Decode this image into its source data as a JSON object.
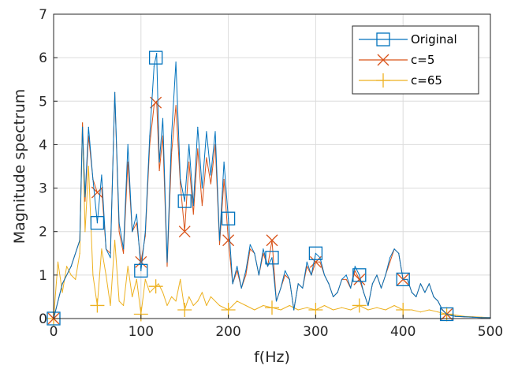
{
  "chart_data": {
    "type": "line",
    "title": "",
    "xlabel": "f(Hz)",
    "ylabel": "Magnitude spectrum",
    "xlim": [
      0,
      500
    ],
    "ylim": [
      0,
      7
    ],
    "xticks": [
      0,
      100,
      200,
      300,
      400,
      500
    ],
    "yticks": [
      0,
      1,
      2,
      3,
      4,
      5,
      6,
      7
    ],
    "grid": true,
    "legend_position": "top-right",
    "series": [
      {
        "name": "Original",
        "color": "#0072BD",
        "marker": "square",
        "marker_x": [
          0,
          50,
          100,
          117,
          150,
          200,
          250,
          300,
          350,
          400,
          450
        ],
        "x": [
          0,
          10,
          20,
          30,
          33,
          36,
          40,
          45,
          50,
          55,
          60,
          65,
          70,
          75,
          80,
          85,
          90,
          95,
          100,
          105,
          110,
          115,
          118,
          121,
          125,
          130,
          135,
          140,
          145,
          150,
          155,
          160,
          165,
          170,
          175,
          180,
          185,
          190,
          195,
          200,
          205,
          210,
          215,
          220,
          225,
          230,
          235,
          240,
          245,
          250,
          255,
          260,
          265,
          270,
          275,
          280,
          285,
          290,
          295,
          300,
          305,
          310,
          315,
          320,
          325,
          330,
          335,
          340,
          345,
          350,
          355,
          360,
          365,
          370,
          375,
          380,
          385,
          390,
          395,
          400,
          405,
          410,
          415,
          420,
          425,
          430,
          435,
          440,
          445,
          450,
          455,
          460,
          470,
          480,
          490,
          500
        ],
        "y": [
          0,
          0.8,
          1.2,
          1.8,
          4.4,
          2.8,
          4.4,
          3.2,
          2.2,
          3.3,
          1.6,
          1.4,
          5.2,
          2.2,
          1.6,
          4.0,
          2.0,
          2.4,
          1.1,
          2.0,
          4.2,
          5.8,
          6.1,
          3.6,
          4.6,
          1.3,
          4.2,
          5.9,
          3.2,
          2.7,
          4.0,
          2.6,
          4.4,
          3.0,
          4.3,
          3.3,
          4.3,
          1.8,
          3.6,
          2.3,
          0.8,
          1.2,
          0.7,
          1.1,
          1.7,
          1.5,
          1.0,
          1.6,
          1.2,
          1.4,
          0.4,
          0.7,
          1.1,
          0.9,
          0.2,
          0.8,
          0.7,
          1.3,
          1.0,
          1.5,
          1.4,
          1.0,
          0.8,
          0.5,
          0.6,
          0.9,
          1.0,
          0.7,
          1.2,
          1.0,
          0.6,
          0.3,
          0.8,
          1.0,
          0.7,
          1.0,
          1.4,
          1.6,
          1.5,
          0.9,
          0.9,
          0.6,
          0.5,
          0.8,
          0.6,
          0.8,
          0.5,
          0.4,
          0.2,
          0.1,
          0.07,
          0.05,
          0.04,
          0.03,
          0.02,
          0.02
        ]
      },
      {
        "name": "c=5",
        "color": "#D95319",
        "marker": "x",
        "marker_x": [
          0,
          50,
          100,
          117,
          150,
          200,
          250,
          300,
          350,
          400,
          450
        ],
        "x": [
          0,
          10,
          20,
          30,
          33,
          36,
          40,
          45,
          50,
          55,
          60,
          65,
          70,
          75,
          80,
          85,
          90,
          95,
          100,
          105,
          110,
          115,
          118,
          121,
          125,
          130,
          135,
          140,
          145,
          150,
          155,
          160,
          165,
          170,
          175,
          180,
          185,
          190,
          195,
          200,
          205,
          210,
          215,
          220,
          225,
          230,
          235,
          240,
          245,
          250,
          255,
          260,
          265,
          270,
          275,
          280,
          285,
          290,
          295,
          300,
          305,
          310,
          315,
          320,
          325,
          330,
          335,
          340,
          345,
          350,
          355,
          360,
          365,
          370,
          375,
          380,
          385,
          390,
          395,
          400,
          405,
          410,
          415,
          420,
          425,
          430,
          435,
          440,
          445,
          450,
          455,
          460,
          470,
          480,
          490,
          500
        ],
        "y": [
          0,
          0.8,
          1.2,
          1.8,
          4.5,
          2.7,
          4.2,
          3.2,
          2.9,
          3.0,
          1.6,
          1.5,
          5.2,
          2.0,
          1.5,
          3.6,
          2.0,
          2.2,
          1.3,
          1.9,
          4.0,
          4.9,
          5.0,
          3.4,
          4.2,
          1.2,
          3.8,
          4.9,
          3.1,
          2.0,
          3.6,
          2.4,
          3.9,
          2.6,
          3.7,
          3.1,
          4.0,
          1.7,
          3.2,
          1.8,
          0.8,
          1.1,
          0.7,
          1.0,
          1.6,
          1.5,
          1.0,
          1.5,
          1.2,
          1.8,
          0.4,
          0.7,
          1.0,
          0.9,
          0.2,
          0.8,
          0.7,
          1.2,
          1.0,
          1.3,
          1.3,
          1.0,
          0.8,
          0.5,
          0.6,
          0.9,
          0.9,
          0.7,
          1.1,
          0.9,
          0.6,
          0.3,
          0.8,
          1.0,
          0.7,
          1.0,
          1.3,
          1.6,
          1.5,
          0.9,
          0.9,
          0.6,
          0.5,
          0.8,
          0.6,
          0.8,
          0.5,
          0.4,
          0.2,
          0.1,
          0.07,
          0.05,
          0.04,
          0.03,
          0.02,
          0.02
        ]
      },
      {
        "name": "c=65",
        "color": "#EDB120",
        "marker": "plus",
        "marker_x": [
          0,
          50,
          100,
          117,
          150,
          200,
          250,
          300,
          350,
          400,
          450
        ],
        "x": [
          0,
          5,
          10,
          15,
          20,
          25,
          30,
          33,
          36,
          40,
          45,
          50,
          55,
          60,
          65,
          70,
          75,
          80,
          85,
          90,
          95,
          100,
          105,
          110,
          115,
          120,
          125,
          130,
          135,
          140,
          145,
          150,
          155,
          160,
          165,
          170,
          175,
          180,
          190,
          200,
          210,
          220,
          230,
          240,
          250,
          260,
          270,
          280,
          290,
          300,
          310,
          320,
          330,
          340,
          350,
          360,
          370,
          380,
          390,
          400,
          410,
          420,
          430,
          440,
          450,
          460,
          470,
          480,
          490,
          500
        ],
        "y": [
          0,
          1.3,
          0.6,
          1.2,
          1.0,
          0.9,
          1.5,
          4.5,
          2.0,
          3.5,
          1.0,
          0.3,
          1.6,
          1.0,
          0.3,
          1.8,
          0.4,
          0.3,
          1.2,
          0.5,
          0.9,
          0.1,
          0.9,
          0.6,
          0.7,
          0.8,
          0.6,
          0.3,
          0.5,
          0.4,
          0.9,
          0.2,
          0.5,
          0.3,
          0.4,
          0.6,
          0.3,
          0.5,
          0.3,
          0.2,
          0.4,
          0.3,
          0.2,
          0.3,
          0.25,
          0.2,
          0.3,
          0.2,
          0.25,
          0.2,
          0.3,
          0.2,
          0.25,
          0.2,
          0.3,
          0.2,
          0.25,
          0.2,
          0.3,
          0.2,
          0.2,
          0.15,
          0.2,
          0.15,
          0.1,
          0.08,
          0.05,
          0.04,
          0.03,
          0.02
        ]
      }
    ]
  }
}
